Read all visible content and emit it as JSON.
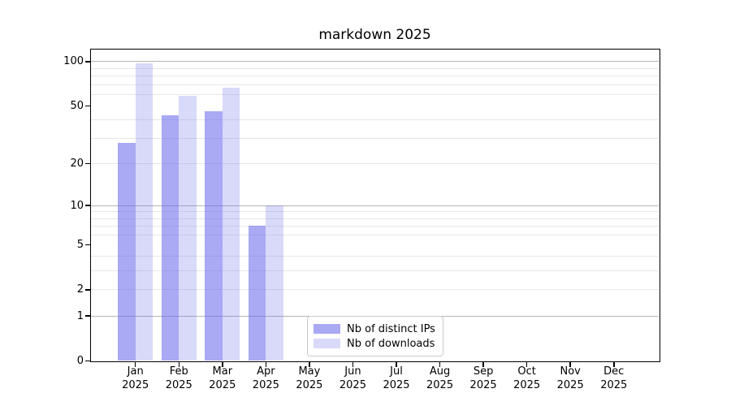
{
  "chart_data": {
    "type": "bar",
    "title": "markdown 2025",
    "year_label": "2025",
    "categories": [
      "Jan",
      "Feb",
      "Mar",
      "Apr",
      "May",
      "Jun",
      "Jul",
      "Aug",
      "Sep",
      "Oct",
      "Nov",
      "Dec"
    ],
    "series": [
      {
        "name": "Nb of distinct IPs",
        "color": "rgba(102,102,235,0.56)",
        "values": [
          28,
          43,
          46,
          7,
          null,
          null,
          null,
          null,
          null,
          null,
          null,
          null
        ]
      },
      {
        "name": "Nb of downloads",
        "color": "rgba(102,102,235,0.25)",
        "values": [
          98,
          59,
          67,
          10,
          null,
          null,
          null,
          null,
          null,
          null,
          null,
          null
        ]
      }
    ],
    "y_scale": "symlog (position ~ log(1+v))",
    "y_ticks": [
      0,
      1,
      2,
      5,
      10,
      20,
      50,
      100
    ],
    "y_gridlines_major": [
      1,
      10,
      100
    ],
    "y_gridlines_minor": [
      2,
      3,
      4,
      6,
      7,
      8,
      9,
      20,
      30,
      40,
      60,
      70,
      80,
      90
    ],
    "ylim": [
      0,
      121
    ],
    "xlabel": "",
    "ylabel": "",
    "grid": true,
    "legend_position": "lower center"
  }
}
